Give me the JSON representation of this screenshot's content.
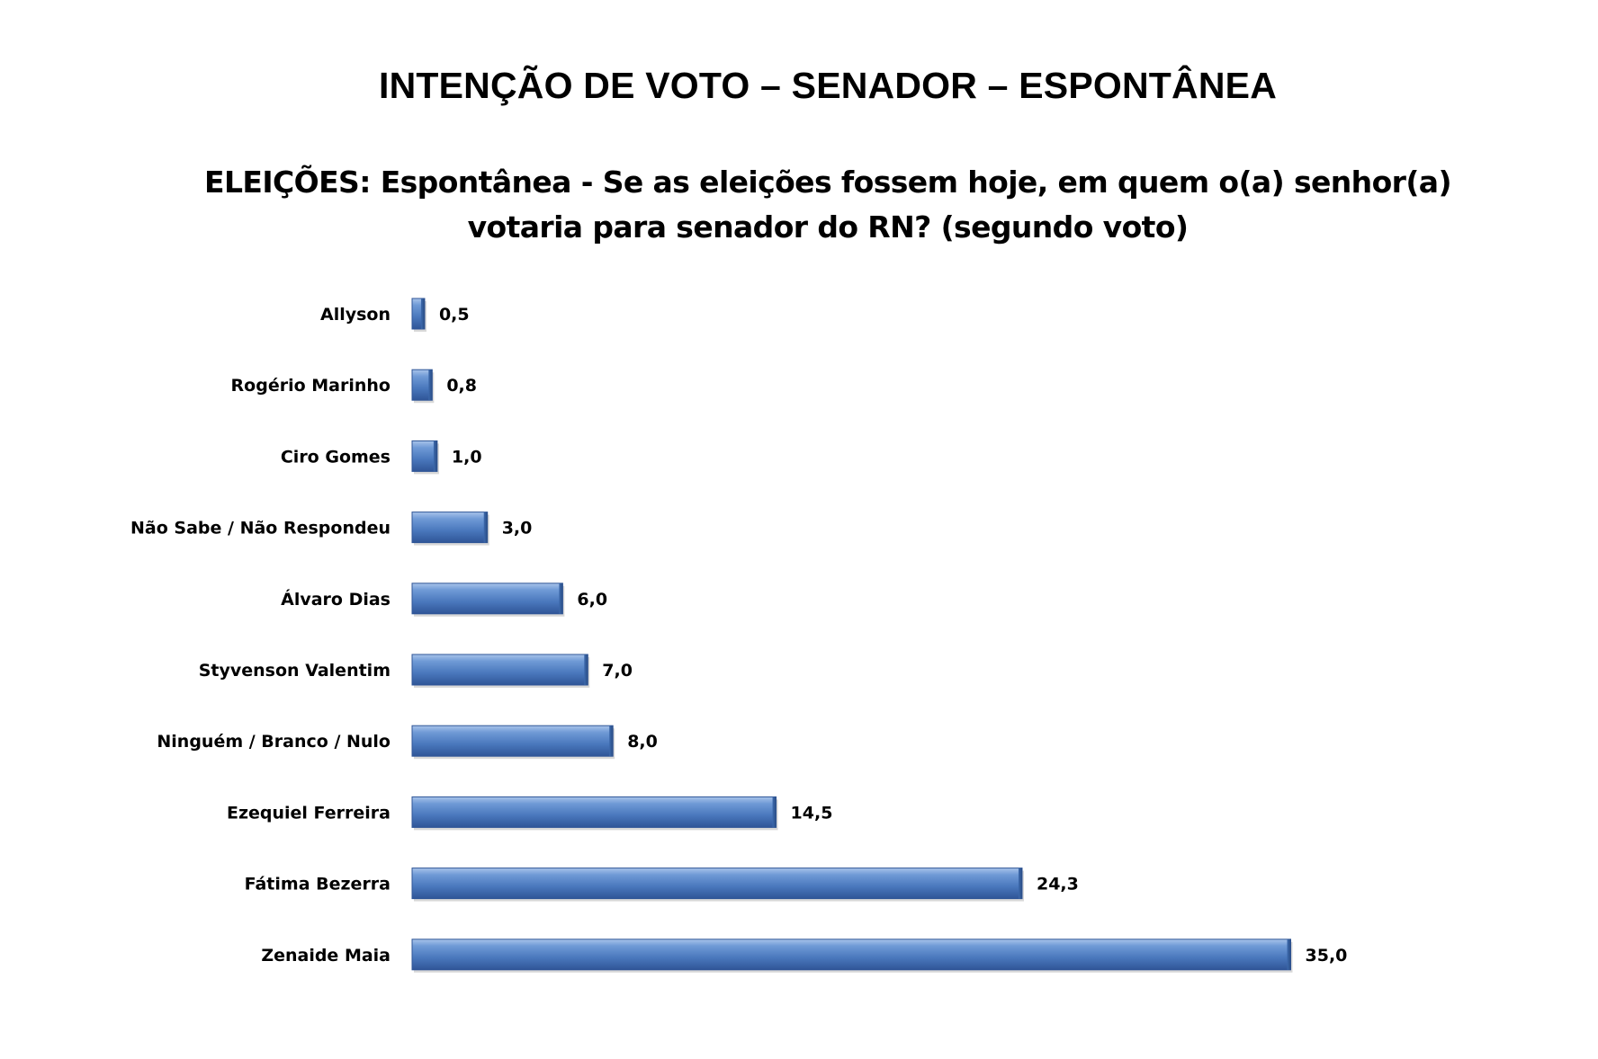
{
  "header": {
    "title": "INTENÇÃO DE VOTO – SENADOR – ESPONTÂNEA"
  },
  "chart_data": {
    "type": "bar",
    "orientation": "horizontal",
    "title": "ELEIÇÕES: Espontânea - Se as eleições fossem hoje, em quem o(a) senhor(a) votaria para senador do RN? (segundo voto)",
    "xlabel": "",
    "ylabel": "",
    "grid": false,
    "legend": "none",
    "bar_color": "#4f81bd",
    "categories": [
      "Allyson",
      "Rogério Marinho",
      "Ciro Gomes",
      "Não Sabe / Não Respondeu",
      "Álvaro Dias",
      "Styvenson Valentim",
      "Ninguém / Branco / Nulo",
      "Ezequiel Ferreira",
      "Fátima Bezerra",
      "Zenaide Maia"
    ],
    "values": [
      0.5,
      0.8,
      1.0,
      3.0,
      6.0,
      7.0,
      8.0,
      14.5,
      24.3,
      35.0
    ],
    "value_labels": [
      "0,5",
      "0,8",
      "1,0",
      "3,0",
      "6,0",
      "7,0",
      "8,0",
      "14,5",
      "24,3",
      "35,0"
    ]
  }
}
